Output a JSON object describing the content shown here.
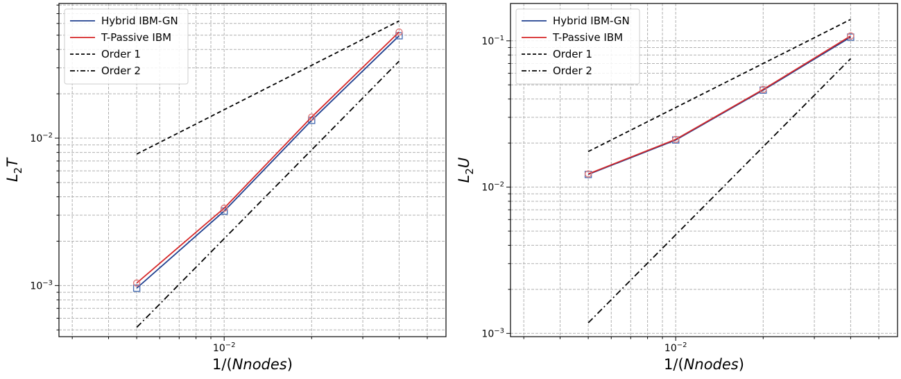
{
  "chart_data": [
    {
      "type": "line",
      "xlabel": "1/(Nnodes)",
      "ylabel": "L2T",
      "xscale": "log",
      "yscale": "log",
      "xlim": [
        0.0027,
        0.058
      ],
      "ylim": [
        0.00045,
        0.082
      ],
      "grid": true,
      "legend_position": "top-left",
      "xticks": [
        {
          "value": 0.01,
          "label": "10",
          "exp": "−2"
        }
      ],
      "yticks": [
        {
          "value": 0.001,
          "label": "10",
          "exp": "−3"
        },
        {
          "value": 0.01,
          "label": "10",
          "exp": "−2"
        }
      ],
      "series": [
        {
          "name": "Hybrid IBM-GN",
          "style": "solid",
          "color": "#1f3f8f",
          "marker": "square",
          "x": [
            0.005,
            0.01,
            0.02,
            0.04
          ],
          "y": [
            0.00096,
            0.0032,
            0.0132,
            0.0495
          ]
        },
        {
          "name": "T-Passive IBM",
          "style": "solid",
          "color": "#d62728",
          "marker": "circle",
          "x": [
            0.005,
            0.01,
            0.02,
            0.04
          ],
          "y": [
            0.00104,
            0.00335,
            0.0139,
            0.0525
          ]
        },
        {
          "name": "Order 1",
          "style": "dashed",
          "color": "#000000",
          "marker": "none",
          "x": [
            0.005,
            0.04
          ],
          "y": [
            0.0078,
            0.0624
          ]
        },
        {
          "name": "Order 2",
          "style": "dashdot",
          "color": "#000000",
          "marker": "none",
          "x": [
            0.005,
            0.04
          ],
          "y": [
            0.00052,
            0.0333
          ]
        }
      ]
    },
    {
      "type": "line",
      "xlabel": "1/(Nnodes)",
      "ylabel": "L2U",
      "xscale": "log",
      "yscale": "log",
      "xlim": [
        0.0027,
        0.058
      ],
      "ylim": [
        0.00095,
        0.18
      ],
      "grid": true,
      "legend_position": "top-left",
      "xticks": [
        {
          "value": 0.01,
          "label": "10",
          "exp": "−2"
        }
      ],
      "yticks": [
        {
          "value": 0.001,
          "label": "10",
          "exp": "−3"
        },
        {
          "value": 0.01,
          "label": "10",
          "exp": "−2"
        },
        {
          "value": 0.1,
          "label": "10",
          "exp": "−1"
        }
      ],
      "series": [
        {
          "name": "Hybrid IBM-GN",
          "style": "solid",
          "color": "#1f3f8f",
          "marker": "square",
          "x": [
            0.005,
            0.01,
            0.02,
            0.04
          ],
          "y": [
            0.0122,
            0.021,
            0.046,
            0.106
          ]
        },
        {
          "name": "T-Passive IBM",
          "style": "solid",
          "color": "#d62728",
          "marker": "circle",
          "x": [
            0.005,
            0.01,
            0.02,
            0.04
          ],
          "y": [
            0.0123,
            0.0212,
            0.0465,
            0.108
          ]
        },
        {
          "name": "Order 1",
          "style": "dashed",
          "color": "#000000",
          "marker": "none",
          "x": [
            0.005,
            0.04
          ],
          "y": [
            0.0175,
            0.14
          ]
        },
        {
          "name": "Order 2",
          "style": "dashdot",
          "color": "#000000",
          "marker": "none",
          "x": [
            0.005,
            0.04
          ],
          "y": [
            0.00118,
            0.0755
          ]
        }
      ]
    }
  ]
}
